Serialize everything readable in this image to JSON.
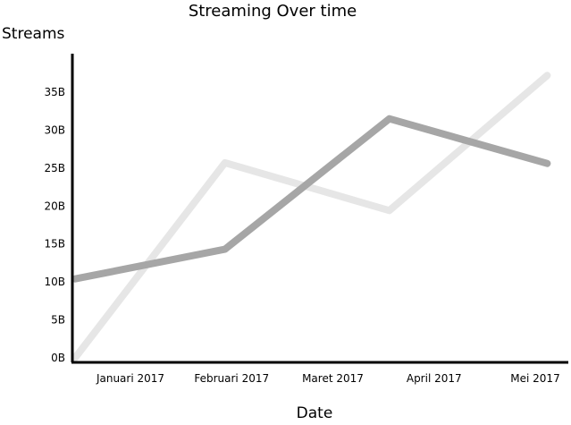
{
  "chart_data": {
    "type": "line",
    "title": "Streaming Over time",
    "xlabel": "Date",
    "ylabel": "Streams",
    "categories": [
      "Januari 2017",
      "Februari 2017",
      "Maret 2017",
      "April 2017",
      "Mei 2017"
    ],
    "y_ticks": [
      {
        "value": 0,
        "label": "0B"
      },
      {
        "value": 5,
        "label": "5B"
      },
      {
        "value": 10,
        "label": "10B"
      },
      {
        "value": 15,
        "label": "15B"
      },
      {
        "value": 20,
        "label": "20B"
      },
      {
        "value": 25,
        "label": "25B"
      },
      {
        "value": 30,
        "label": "30B"
      },
      {
        "value": 35,
        "label": "35B"
      }
    ],
    "ylim": [
      0,
      39
    ],
    "grid": false,
    "series": [
      {
        "points": [
          [
            0.0,
            0
          ],
          [
            0.93,
            25.7
          ],
          [
            1.95,
            19.4
          ],
          [
            2.93,
            37.2
          ]
        ],
        "color": "#e6e6e6"
      },
      {
        "points": [
          [
            0.0,
            10.4
          ],
          [
            0.93,
            14.3
          ],
          [
            1.95,
            31.5
          ],
          [
            2.93,
            25.6
          ]
        ],
        "color": "#a6a6a6"
      }
    ]
  }
}
